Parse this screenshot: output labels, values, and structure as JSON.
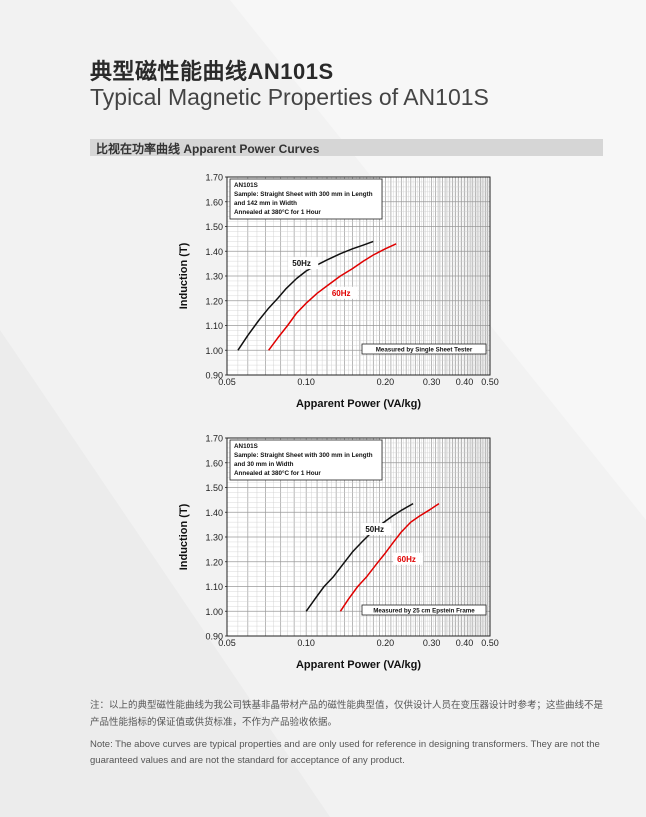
{
  "page": {
    "title_cn": "典型磁性能曲线AN101S",
    "title_en": "Typical Magnetic Properties of AN101S",
    "section_title": "比视在功率曲线 Apparent Power Curves",
    "note_cn": "注：以上的典型磁性能曲线为我公司铁基非晶带材产品的磁性能典型值，仅供设计人员在变压器设计时参考；这些曲线不是产品性能指标的保证值或供货标准，不作为产品验收依据。",
    "note_en": "Note: The above curves are typical properties and are only used for reference in designing transformers. They are not the guaranteed values and are not the standard for acceptance of any product.",
    "colors": {
      "series_50hz": "#111111",
      "series_60hz": "#e00000",
      "background": "#f2f2f2"
    }
  },
  "chart_data": [
    {
      "type": "line",
      "x_scale": "log",
      "xlabel": "Apparent Power (VA/kg)",
      "ylabel": "Induction (T)",
      "xlim": [
        0.05,
        0.5
      ],
      "ylim": [
        0.9,
        1.7
      ],
      "x_ticks": [
        "0.05",
        "0.10",
        "0.20",
        "0.30",
        "0.40",
        "0.50"
      ],
      "y_ticks": [
        "0.90",
        "1.00",
        "1.10",
        "1.20",
        "1.30",
        "1.40",
        "1.50",
        "1.60",
        "1.70"
      ],
      "grid": true,
      "info_box": {
        "lines": [
          "AN101S",
          "Sample: Straight Sheet with 300 mm in Length",
          "and 142 mm in Width",
          "Annealed at  380°C  for 1 Hour"
        ]
      },
      "method_label": "Measured by Single Sheet Tester",
      "series": [
        {
          "name": "50Hz",
          "x": [
            0.055,
            0.06,
            0.066,
            0.072,
            0.078,
            0.084,
            0.092,
            0.1,
            0.11,
            0.12,
            0.135,
            0.15,
            0.165,
            0.18
          ],
          "y": [
            1.0,
            1.06,
            1.12,
            1.17,
            1.21,
            1.25,
            1.29,
            1.32,
            1.345,
            1.365,
            1.39,
            1.41,
            1.425,
            1.44
          ]
        },
        {
          "name": "60Hz",
          "x": [
            0.072,
            0.078,
            0.085,
            0.092,
            0.1,
            0.11,
            0.12,
            0.135,
            0.15,
            0.165,
            0.18,
            0.2,
            0.22
          ],
          "y": [
            1.0,
            1.05,
            1.1,
            1.15,
            1.19,
            1.23,
            1.26,
            1.3,
            1.33,
            1.36,
            1.385,
            1.41,
            1.43
          ]
        }
      ],
      "labels": [
        "50Hz",
        "60Hz"
      ]
    },
    {
      "type": "line",
      "x_scale": "log",
      "xlabel": "Apparent Power (VA/kg)",
      "ylabel": "Induction (T)",
      "xlim": [
        0.05,
        0.5
      ],
      "ylim": [
        0.9,
        1.7
      ],
      "x_ticks": [
        "0.05",
        "0.10",
        "0.20",
        "0.30",
        "0.40",
        "0.50"
      ],
      "y_ticks": [
        "0.90",
        "1.00",
        "1.10",
        "1.20",
        "1.30",
        "1.40",
        "1.50",
        "1.60",
        "1.70"
      ],
      "grid": true,
      "info_box": {
        "lines": [
          "AN101S",
          "Sample: Straight Sheet with 300 mm in Length",
          "and 30 mm in Width",
          "Annealed at  380°C  for 1 Hour"
        ]
      },
      "method_label": "Measured by 25 cm Epstein Frame",
      "series": [
        {
          "name": "50Hz",
          "x": [
            0.1,
            0.108,
            0.117,
            0.127,
            0.138,
            0.15,
            0.163,
            0.178,
            0.195,
            0.213,
            0.232,
            0.255
          ],
          "y": [
            1.0,
            1.05,
            1.1,
            1.14,
            1.19,
            1.24,
            1.28,
            1.32,
            1.355,
            1.385,
            1.41,
            1.435
          ]
        },
        {
          "name": "60Hz",
          "x": [
            0.135,
            0.145,
            0.157,
            0.17,
            0.185,
            0.2,
            0.215,
            0.23,
            0.25,
            0.27,
            0.295,
            0.32
          ],
          "y": [
            1.0,
            1.05,
            1.1,
            1.14,
            1.19,
            1.235,
            1.28,
            1.32,
            1.36,
            1.385,
            1.41,
            1.435
          ]
        }
      ],
      "labels": [
        "50Hz",
        "60Hz"
      ]
    }
  ]
}
